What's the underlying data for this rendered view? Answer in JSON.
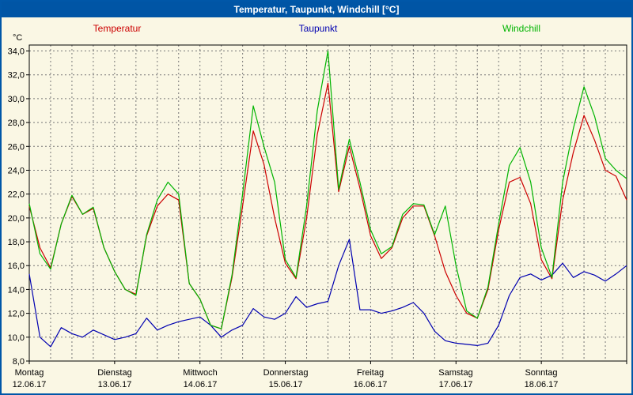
{
  "window": {
    "title": "Temperatur, Taupunkt, Windchill [°C]"
  },
  "colors": {
    "titlebar_bg": "#0055a5",
    "background": "#faf7e4",
    "border": "#0057a8",
    "grid": "#777777",
    "temperatur": "#cc0000",
    "taupunkt": "#0000b0",
    "windchill": "#00b400"
  },
  "chart_data": {
    "type": "line",
    "title": "Temperatur, Taupunkt, Windchill [°C]",
    "ylabel": "°C",
    "ylim": [
      8,
      34.5
    ],
    "yticks": [
      8,
      34,
      2
    ],
    "ytick_labels": [
      "8,0",
      "10,0",
      "12,0",
      "14,0",
      "16,0",
      "18,0",
      "20,0",
      "22,0",
      "24,0",
      "26,0",
      "28,0",
      "30,0",
      "32,0",
      "34,0"
    ],
    "x_range": [
      0,
      168
    ],
    "x_step_hours": 3,
    "x_grid_step_hours": 6,
    "grid": "dashed",
    "legend_position": "top",
    "days": [
      {
        "name": "Montag",
        "date": "12.06.17"
      },
      {
        "name": "Dienstag",
        "date": "13.06.17"
      },
      {
        "name": "Mittwoch",
        "date": "14.06.17"
      },
      {
        "name": "Donnerstag",
        "date": "15.06.17"
      },
      {
        "name": "Freitag",
        "date": "16.06.17"
      },
      {
        "name": "Samstag",
        "date": "17.06.17"
      },
      {
        "name": "Sonntag",
        "date": "18.06.17"
      }
    ],
    "series": [
      {
        "name": "Temperatur",
        "color": "#cc0000",
        "values": [
          21.0,
          17.5,
          15.8,
          19.5,
          21.8,
          20.3,
          20.8,
          17.5,
          15.5,
          14.0,
          13.6,
          18.5,
          21.0,
          22.0,
          21.5,
          14.5,
          13.2,
          11.0,
          10.7,
          15.0,
          21.0,
          27.3,
          24.5,
          20.0,
          16.2,
          14.9,
          20.0,
          27.0,
          31.3,
          22.2,
          26.0,
          22.5,
          18.5,
          16.6,
          17.5,
          20.0,
          21.0,
          21.0,
          18.5,
          15.5,
          13.5,
          12.0,
          11.6,
          14.0,
          19.0,
          23.0,
          23.4,
          21.2,
          16.5,
          14.9,
          21.5,
          25.5,
          28.6,
          26.5,
          24.0,
          23.5,
          21.5
        ]
      },
      {
        "name": "Taupunkt",
        "color": "#0000b0",
        "values": [
          15.3,
          10.0,
          9.2,
          10.8,
          10.3,
          10.0,
          10.6,
          10.2,
          9.8,
          10.0,
          10.3,
          11.6,
          10.6,
          11.0,
          11.3,
          11.5,
          11.7,
          11.0,
          10.0,
          10.6,
          11.0,
          12.4,
          11.7,
          11.5,
          12.0,
          13.4,
          12.5,
          12.8,
          13.0,
          16.0,
          18.2,
          12.3,
          12.3,
          12.0,
          12.2,
          12.5,
          12.9,
          12.0,
          10.5,
          9.7,
          9.5,
          9.4,
          9.3,
          9.5,
          11.0,
          13.5,
          15.0,
          15.3,
          14.8,
          15.2,
          16.2,
          15.0,
          15.5,
          15.2,
          14.7,
          15.3,
          16.0
        ]
      },
      {
        "name": "Windchill",
        "color": "#00b400",
        "values": [
          21.2,
          17.0,
          15.7,
          19.5,
          21.9,
          20.3,
          20.9,
          17.5,
          15.5,
          14.0,
          13.5,
          18.6,
          21.5,
          23.0,
          22.0,
          14.5,
          13.2,
          11.0,
          10.7,
          15.2,
          22.0,
          29.4,
          26.0,
          23.0,
          16.5,
          15.0,
          21.0,
          29.0,
          34.0,
          22.4,
          26.6,
          23.0,
          19.0,
          17.0,
          17.6,
          20.3,
          21.2,
          21.1,
          18.6,
          21.0,
          16.0,
          12.2,
          11.6,
          14.2,
          19.5,
          24.4,
          25.9,
          23.0,
          17.5,
          15.0,
          23.0,
          27.5,
          31.0,
          28.5,
          25.0,
          24.0,
          23.3
        ]
      }
    ]
  }
}
